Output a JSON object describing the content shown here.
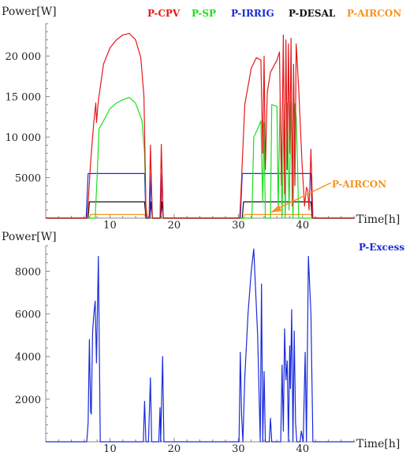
{
  "chart_data": [
    {
      "type": "line",
      "ylabel": "Power[W]",
      "xlabel": "Time[h]",
      "xlim": [
        0,
        48
      ],
      "ylim": [
        0,
        24000
      ],
      "xticks": [
        10,
        20,
        30,
        40
      ],
      "yticks": [
        5000,
        10000,
        15000,
        20000
      ],
      "ytick_labels": [
        "5000",
        "10 000",
        "15 000",
        "20 000"
      ],
      "legend_placement": "top",
      "grid": false,
      "annotations": [
        {
          "text": "P-AIRCON",
          "color": "#f7941d",
          "points_to": {
            "x": 35,
            "y": 800
          }
        }
      ],
      "series": [
        {
          "name": "P-CPV",
          "color": "#e31a1c",
          "points": [
            [
              0,
              0
            ],
            [
              6.4,
              0
            ],
            [
              6.6,
              1800
            ],
            [
              7.0,
              7000
            ],
            [
              7.5,
              12000
            ],
            [
              7.8,
              14200
            ],
            [
              7.9,
              11800
            ],
            [
              8.2,
              14500
            ],
            [
              9.0,
              19000
            ],
            [
              10.0,
              21000
            ],
            [
              11.0,
              22000
            ],
            [
              12.0,
              22600
            ],
            [
              13.0,
              22800
            ],
            [
              14.0,
              22000
            ],
            [
              14.8,
              19800
            ],
            [
              15.3,
              15000
            ],
            [
              15.6,
              1500
            ],
            [
              15.8,
              0
            ],
            [
              16.1,
              0
            ],
            [
              16.3,
              9000
            ],
            [
              16.6,
              0
            ],
            [
              17.8,
              0
            ],
            [
              18.0,
              9100
            ],
            [
              18.3,
              0
            ],
            [
              30.2,
              0
            ],
            [
              30.4,
              3000
            ],
            [
              31.0,
              14000
            ],
            [
              32.0,
              18500
            ],
            [
              32.8,
              19800
            ],
            [
              33.5,
              19500
            ],
            [
              33.8,
              8000
            ],
            [
              34.0,
              20000
            ],
            [
              34.2,
              6000
            ],
            [
              34.5,
              15500
            ],
            [
              35.0,
              18000
            ],
            [
              36.0,
              19500
            ],
            [
              36.4,
              20500
            ],
            [
              36.7,
              4000
            ],
            [
              37.0,
              22600
            ],
            [
              37.2,
              3000
            ],
            [
              37.4,
              22000
            ],
            [
              37.6,
              6000
            ],
            [
              37.8,
              21500
            ],
            [
              38.0,
              8000
            ],
            [
              38.2,
              22200
            ],
            [
              38.4,
              1500
            ],
            [
              38.6,
              19000
            ],
            [
              38.8,
              4000
            ],
            [
              39.0,
              21500
            ],
            [
              39.4,
              16000
            ],
            [
              39.9,
              7000
            ],
            [
              40.3,
              1500
            ],
            [
              40.6,
              3800
            ],
            [
              40.8,
              3500
            ],
            [
              41.0,
              1000
            ],
            [
              41.3,
              8500
            ],
            [
              41.6,
              0
            ],
            [
              48,
              0
            ]
          ]
        },
        {
          "name": "P-SP",
          "color": "#1fdc1f",
          "points": [
            [
              0,
              0
            ],
            [
              7.7,
              0
            ],
            [
              8.0,
              5000
            ],
            [
              8.3,
              11000
            ],
            [
              9.0,
              12000
            ],
            [
              10.0,
              13500
            ],
            [
              11.0,
              14200
            ],
            [
              12.0,
              14600
            ],
            [
              13.0,
              14900
            ],
            [
              14.0,
              14200
            ],
            [
              15.0,
              12000
            ],
            [
              15.4,
              8000
            ],
            [
              15.6,
              1000
            ],
            [
              15.8,
              0
            ],
            [
              32.1,
              0
            ],
            [
              32.4,
              10000
            ],
            [
              33.0,
              11000
            ],
            [
              33.5,
              12000
            ],
            [
              33.8,
              2000
            ],
            [
              34.0,
              11800
            ],
            [
              34.2,
              0
            ],
            [
              35.0,
              0
            ],
            [
              35.2,
              14000
            ],
            [
              36.0,
              13800
            ],
            [
              36.2,
              1200
            ],
            [
              36.5,
              14500
            ],
            [
              36.8,
              0
            ],
            [
              37.1,
              14000
            ],
            [
              37.3,
              0
            ],
            [
              37.6,
              14200
            ],
            [
              37.9,
              1000
            ],
            [
              38.2,
              14300
            ],
            [
              38.5,
              0
            ],
            [
              38.8,
              14100
            ],
            [
              39.0,
              12500
            ],
            [
              39.2,
              7000
            ],
            [
              39.4,
              0
            ],
            [
              48,
              0
            ]
          ]
        },
        {
          "name": "P-IRRIG",
          "color": "#1a2bd9",
          "points": [
            [
              0,
              0
            ],
            [
              6.3,
              0
            ],
            [
              6.6,
              5500
            ],
            [
              15.4,
              5500
            ],
            [
              15.6,
              0
            ],
            [
              16.2,
              0
            ],
            [
              16.4,
              5500
            ],
            [
              16.6,
              0
            ],
            [
              17.9,
              0
            ],
            [
              18.1,
              5500
            ],
            [
              18.3,
              0
            ],
            [
              30.3,
              0
            ],
            [
              30.6,
              5500
            ],
            [
              41.3,
              5500
            ],
            [
              41.5,
              0
            ],
            [
              48,
              0
            ]
          ]
        },
        {
          "name": "P-DESAL",
          "color": "#111111",
          "points": [
            [
              0,
              0
            ],
            [
              6.6,
              0
            ],
            [
              6.8,
              2000
            ],
            [
              15.4,
              2000
            ],
            [
              15.6,
              0
            ],
            [
              16.2,
              0
            ],
            [
              16.4,
              2000
            ],
            [
              16.6,
              0
            ],
            [
              17.9,
              0
            ],
            [
              18.1,
              2000
            ],
            [
              18.3,
              0
            ],
            [
              30.6,
              0
            ],
            [
              30.8,
              2000
            ],
            [
              41.3,
              2000
            ],
            [
              41.5,
              0
            ],
            [
              48,
              0
            ]
          ]
        },
        {
          "name": "P-AIRCON",
          "color": "#f7941d",
          "points": [
            [
              0,
              0
            ],
            [
              6.8,
              0
            ],
            [
              7.0,
              450
            ],
            [
              15.4,
              450
            ],
            [
              15.6,
              0
            ],
            [
              30.8,
              0
            ],
            [
              31.0,
              450
            ],
            [
              41.3,
              450
            ],
            [
              41.5,
              0
            ],
            [
              48,
              0
            ]
          ]
        }
      ]
    },
    {
      "type": "line",
      "ylabel": "Power[W]",
      "xlabel": "Time[h]",
      "xlim": [
        0,
        48
      ],
      "ylim": [
        0,
        9200
      ],
      "xticks": [
        10,
        20,
        30,
        40
      ],
      "yticks": [
        2000,
        4000,
        6000,
        8000
      ],
      "ytick_labels": [
        "2000",
        "4000",
        "6000",
        "8000"
      ],
      "legend_placement": "top-right",
      "grid": false,
      "series": [
        {
          "name": "P-Excess",
          "color": "#1a2bd9",
          "points": [
            [
              0,
              0
            ],
            [
              6.4,
              0
            ],
            [
              6.6,
              900
            ],
            [
              6.8,
              4800
            ],
            [
              7.0,
              1400
            ],
            [
              7.1,
              1300
            ],
            [
              7.3,
              5200
            ],
            [
              7.5,
              6000
            ],
            [
              7.7,
              6600
            ],
            [
              7.9,
              3700
            ],
            [
              8.2,
              8700
            ],
            [
              8.5,
              0
            ],
            [
              15.2,
              0
            ],
            [
              15.4,
              1900
            ],
            [
              15.6,
              0
            ],
            [
              16.0,
              0
            ],
            [
              16.3,
              3000
            ],
            [
              16.5,
              0
            ],
            [
              17.6,
              0
            ],
            [
              17.8,
              1600
            ],
            [
              17.9,
              0
            ],
            [
              18.2,
              4000
            ],
            [
              18.4,
              0
            ],
            [
              30.1,
              0
            ],
            [
              30.3,
              4200
            ],
            [
              30.5,
              1300
            ],
            [
              30.7,
              0
            ],
            [
              31.0,
              3000
            ],
            [
              31.5,
              6000
            ],
            [
              32.0,
              8000
            ],
            [
              32.4,
              9050
            ],
            [
              33.0,
              5000
            ],
            [
              33.4,
              0
            ],
            [
              33.6,
              7400
            ],
            [
              33.8,
              0
            ],
            [
              34.0,
              3300
            ],
            [
              34.2,
              0
            ],
            [
              34.8,
              0
            ],
            [
              35.0,
              1100
            ],
            [
              35.2,
              0
            ],
            [
              36.6,
              0
            ],
            [
              36.8,
              3600
            ],
            [
              37.0,
              500
            ],
            [
              37.2,
              5300
            ],
            [
              37.4,
              2900
            ],
            [
              37.6,
              3800
            ],
            [
              37.8,
              0
            ],
            [
              38.0,
              4500
            ],
            [
              38.1,
              2500
            ],
            [
              38.3,
              6200
            ],
            [
              38.5,
              0
            ],
            [
              38.7,
              5200
            ],
            [
              38.9,
              900
            ],
            [
              39.1,
              0
            ],
            [
              39.6,
              0
            ],
            [
              39.8,
              500
            ],
            [
              40.1,
              0
            ],
            [
              40.4,
              4200
            ],
            [
              40.6,
              0
            ],
            [
              40.9,
              8700
            ],
            [
              41.3,
              6000
            ],
            [
              41.6,
              0
            ],
            [
              48,
              0
            ]
          ]
        }
      ]
    }
  ]
}
